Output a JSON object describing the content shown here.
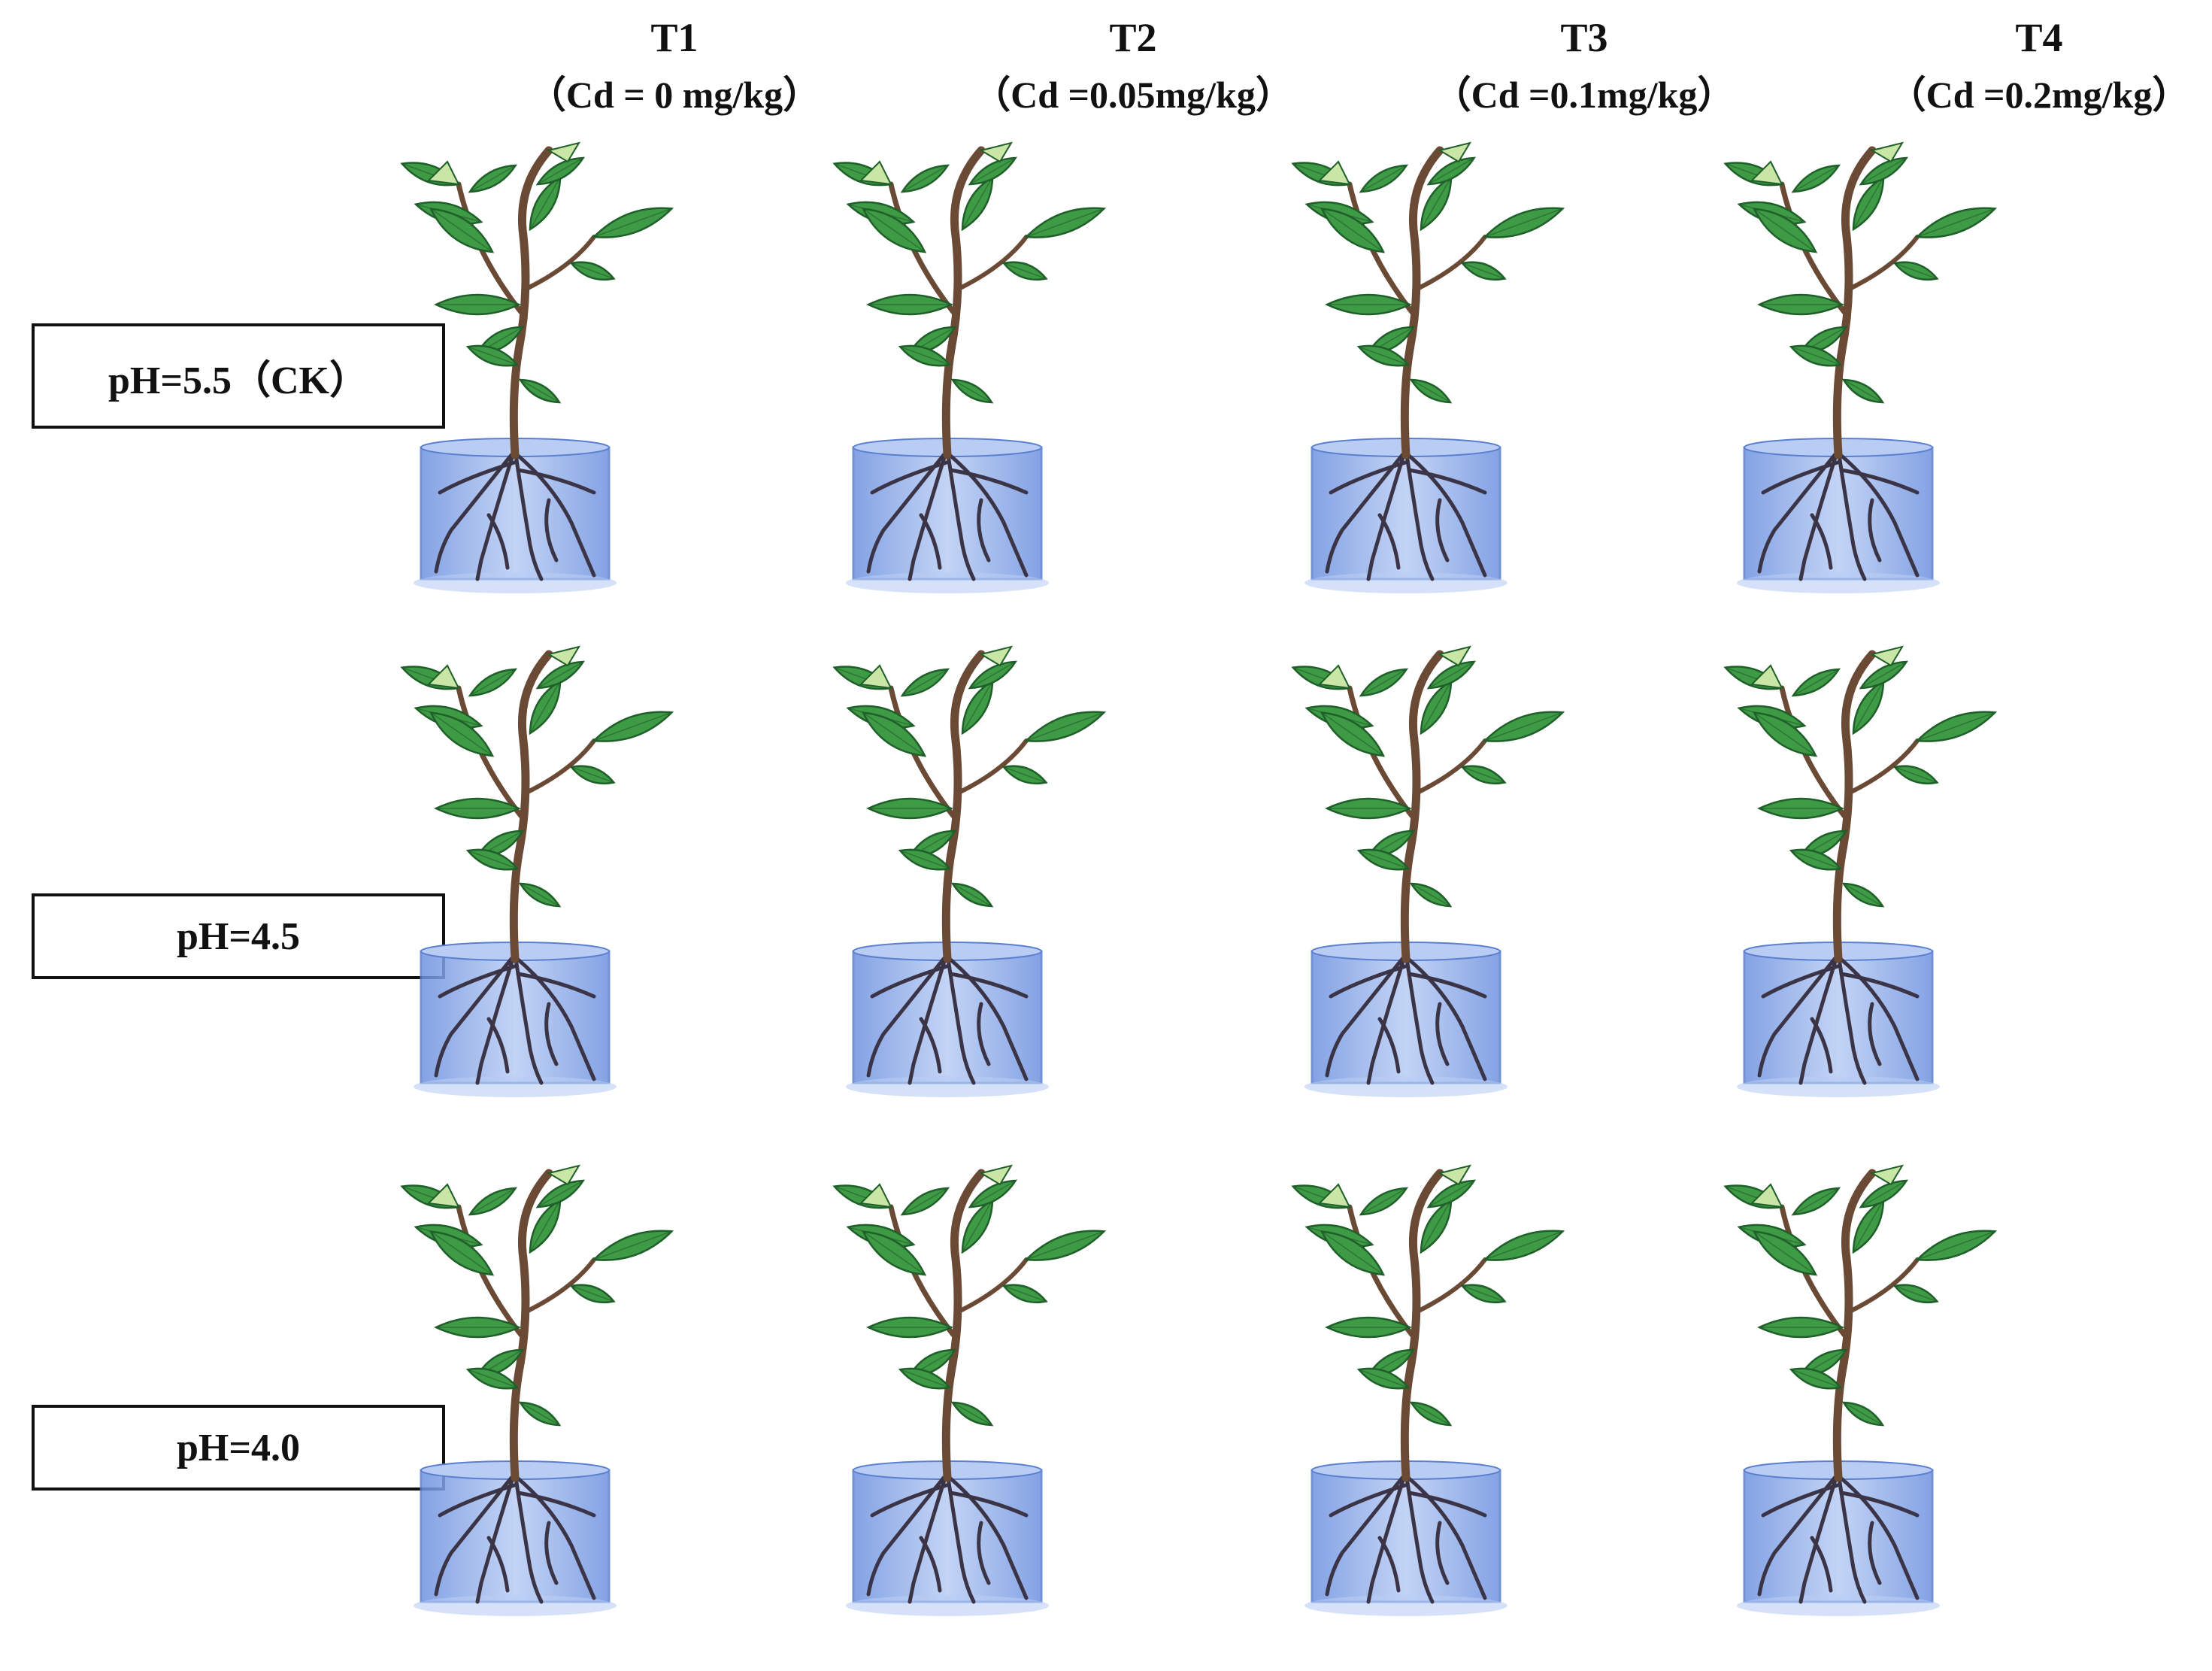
{
  "columns": [
    {
      "label": "T1",
      "condition": "（Cd = 0 mg/kg）"
    },
    {
      "label": "T2",
      "condition": "（Cd =0.05mg/kg）"
    },
    {
      "label": "T3",
      "condition": "（Cd =0.1mg/kg）"
    },
    {
      "label": "T4",
      "condition": "（Cd =0.2mg/kg）"
    }
  ],
  "rows": [
    {
      "label": "pH=5.5（CK）"
    },
    {
      "label": "pH=4.5"
    },
    {
      "label": "pH=4.0"
    }
  ],
  "colors": {
    "leaf": "#3f9a45",
    "leaf_dark": "#1f5f2a",
    "leaf_light": "#c9e6a6",
    "stem": "#6b4a35",
    "water": "#6f93e0",
    "water_light": "#b9cdf4",
    "root": "#3a3446"
  }
}
